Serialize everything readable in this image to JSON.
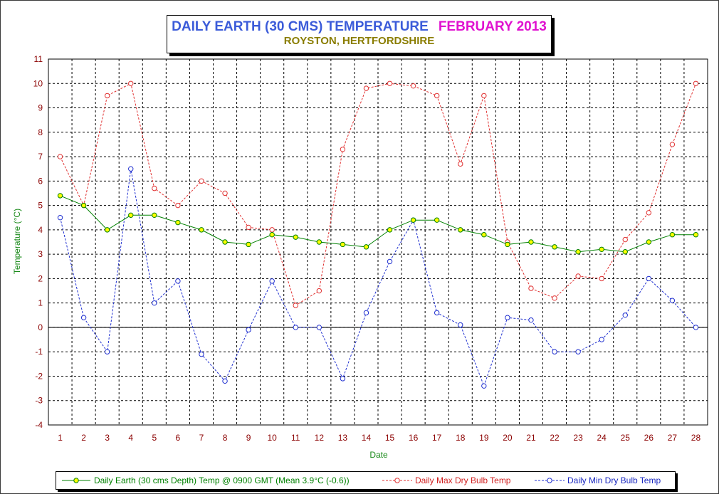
{
  "title": {
    "main": "DAILY EARTH (30 CMS) TEMPERATURE",
    "month": "FEBRUARY 2013",
    "subtitle": "ROYSTON, HERTFORDSHIRE"
  },
  "chart_data": {
    "type": "line",
    "xlabel": "Date",
    "ylabel": "Temperature (°C)",
    "ylim": [
      -4,
      11
    ],
    "xlim": [
      1,
      28
    ],
    "grid": true,
    "legend_position": "bottom",
    "x": [
      1,
      2,
      3,
      4,
      5,
      6,
      7,
      8,
      9,
      10,
      11,
      12,
      13,
      14,
      15,
      16,
      17,
      18,
      19,
      20,
      21,
      22,
      23,
      24,
      25,
      26,
      27,
      28
    ],
    "series": [
      {
        "name": "Daily Earth (30 cms Depth) Temp @ 0900 GMT (Mean 3.9°C (-0.6))",
        "color": "#008000",
        "marker_fill": "#ffff00",
        "style": "solid",
        "values": [
          5.4,
          5.0,
          4.0,
          4.6,
          4.6,
          4.3,
          4.0,
          3.5,
          3.4,
          3.8,
          3.7,
          3.5,
          3.4,
          3.3,
          4.0,
          4.4,
          4.4,
          4.0,
          3.8,
          3.4,
          3.5,
          3.3,
          3.1,
          3.2,
          3.1,
          3.5,
          3.8,
          3.8
        ]
      },
      {
        "name": "Daily Max Dry Bulb Temp",
        "color": "#e03030",
        "marker_fill": "none",
        "style": "dashed",
        "values": [
          7.0,
          5.0,
          9.5,
          10.0,
          5.7,
          5.0,
          6.0,
          5.5,
          4.1,
          4.0,
          0.9,
          1.5,
          7.3,
          9.8,
          10.0,
          9.9,
          9.5,
          6.7,
          9.5,
          3.5,
          1.6,
          1.2,
          2.1,
          2.0,
          3.6,
          4.7,
          7.5,
          10.0
        ]
      },
      {
        "name": "Daily Min Dry Bulb Temp",
        "color": "#2030d0",
        "marker_fill": "none",
        "style": "dashed",
        "values": [
          4.5,
          0.4,
          -1.0,
          6.5,
          1.0,
          1.9,
          -1.1,
          -2.2,
          -0.1,
          1.9,
          0.0,
          0.0,
          -2.1,
          0.6,
          2.7,
          4.4,
          0.6,
          0.1,
          -2.4,
          0.4,
          0.3,
          -1.0,
          -1.0,
          -0.5,
          0.5,
          2.0,
          1.1,
          0.0
        ]
      }
    ]
  }
}
